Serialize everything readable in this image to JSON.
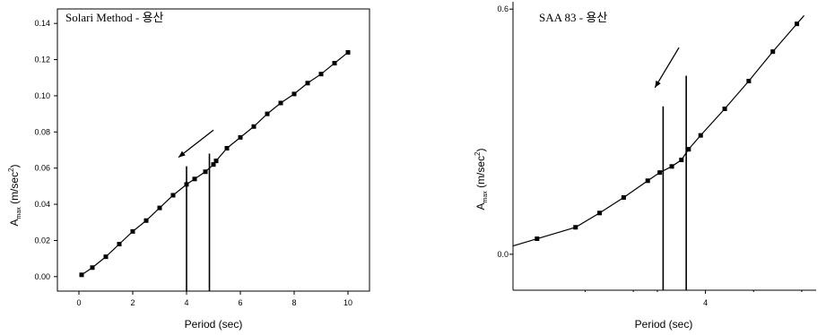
{
  "chart_data": [
    {
      "type": "line",
      "title": "Solari Method - 용산",
      "xlabel": "Period (sec)",
      "ylabel": {
        "main": "A",
        "sub": "max",
        "unit": " (m/sec",
        "sup": "2",
        "close": ")"
      },
      "xlim": [
        -0.8,
        10.8
      ],
      "ylim": [
        -0.008,
        0.148
      ],
      "xticks": [
        0,
        2,
        4,
        6,
        8,
        10
      ],
      "xtick_labels": [
        "0",
        "2",
        "4",
        "6",
        "8",
        "10"
      ],
      "yticks": [
        0.0,
        0.02,
        0.04,
        0.06,
        0.08,
        0.1,
        0.12,
        0.14
      ],
      "ytick_labels": [
        "0.00",
        "0.02",
        "0.04",
        "0.06",
        "0.08",
        "0.10",
        "0.12",
        "0.14"
      ],
      "marker": "square",
      "series": [
        {
          "x": [
            0.1,
            0.5,
            1.0,
            1.5,
            2.0,
            2.5,
            3.0,
            3.5,
            4.0,
            4.3,
            4.7,
            5.0,
            5.1,
            5.5,
            6.0,
            6.5,
            7.0,
            7.5,
            8.0,
            8.5,
            9.0,
            9.5,
            10.0
          ],
          "y": [
            0.001,
            0.005,
            0.011,
            0.018,
            0.025,
            0.031,
            0.038,
            0.045,
            0.051,
            0.054,
            0.058,
            0.062,
            0.064,
            0.071,
            0.077,
            0.083,
            0.09,
            0.096,
            0.101,
            0.107,
            0.112,
            0.118,
            0.124
          ]
        }
      ],
      "vertical_markers": [
        {
          "x": 4.0,
          "y_top": 0.061
        },
        {
          "x": 4.85,
          "y_top": 0.068
        }
      ],
      "arrow": {
        "from": [
          5.0,
          0.081
        ],
        "to": [
          3.7,
          0.066
        ]
      }
    },
    {
      "type": "line",
      "title": "SAA 83 - 용산",
      "xlabel": "Period (sec)",
      "ylabel": {
        "main": "A",
        "sub": "max",
        "unit": " (m/sec",
        "sup": "2",
        "close": ")"
      },
      "xlim": [
        0.0,
        6.3
      ],
      "ylim": [
        -0.088,
        0.618
      ],
      "xticks": [
        4
      ],
      "xtick_labels": [
        "4"
      ],
      "minor_xticks": [
        1.5,
        2.5,
        3.0,
        5.0,
        6.0
      ],
      "yticks": [
        0.0,
        0.6
      ],
      "ytick_labels": [
        "0.0",
        "0.6"
      ],
      "marker": "square",
      "series": [
        {
          "x": [
            0.5,
            1.3,
            1.8,
            2.3,
            2.8,
            3.05,
            3.3,
            3.5,
            3.65,
            3.9,
            4.4,
            4.9,
            5.4,
            5.9
          ],
          "y": [
            0.038,
            0.066,
            0.101,
            0.139,
            0.18,
            0.2,
            0.215,
            0.231,
            0.257,
            0.291,
            0.356,
            0.424,
            0.496,
            0.564
          ]
        }
      ],
      "vertical_markers": [
        {
          "x": 3.12,
          "y_top": 0.362
        },
        {
          "x": 3.6,
          "y_top": 0.437
        }
      ],
      "arrow": {
        "from": [
          3.45,
          0.506
        ],
        "to": [
          2.95,
          0.408
        ]
      }
    }
  ]
}
